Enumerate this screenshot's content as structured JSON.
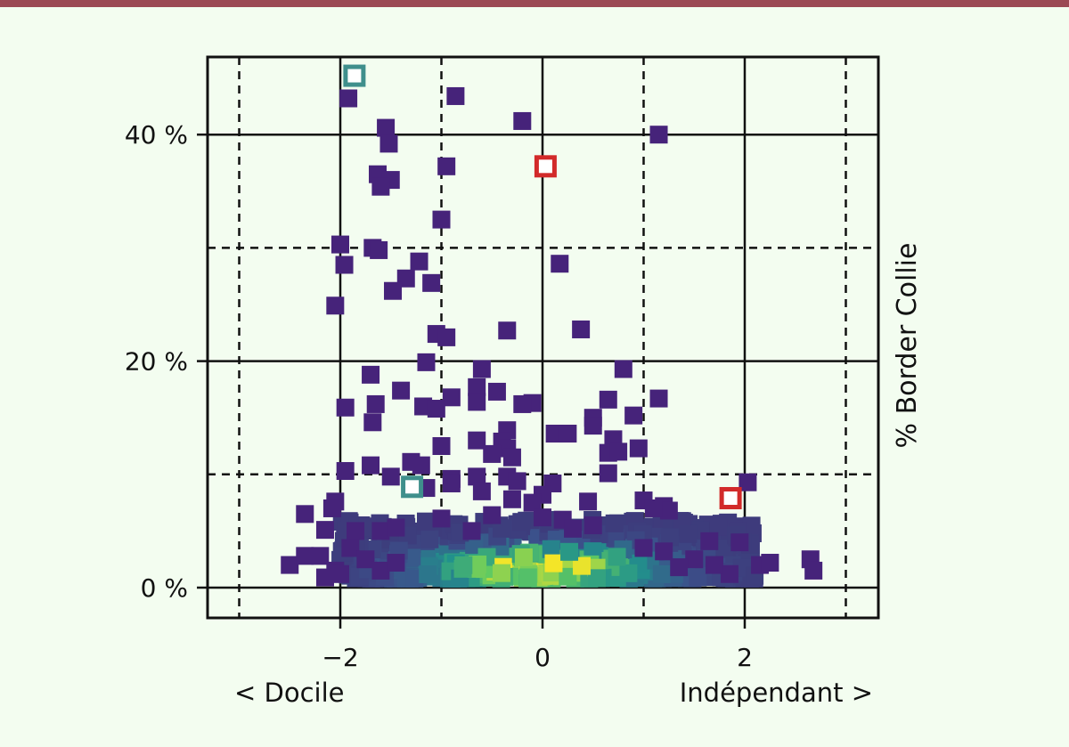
{
  "colors": {
    "background": "#f3fdf0",
    "top_bar": "#9b4954",
    "point_low": "#46237a",
    "highlight_red": "#d22a2a",
    "highlight_teal": "#3f8f8c"
  },
  "chart_data": {
    "type": "scatter",
    "xlim": [
      -3.3,
      3.3
    ],
    "ylim": [
      -3,
      46
    ],
    "x_ticks": [
      -2,
      0,
      2
    ],
    "x_tick_labels": [
      "−2",
      "0",
      "2"
    ],
    "y_ticks": [
      0,
      20,
      40
    ],
    "y_tick_labels": [
      "0 %",
      "20 %",
      "40 %"
    ],
    "x_left_label": "< Docile",
    "x_right_label": "Indépendant >",
    "ylabel": "% Border Collie",
    "grid": {
      "solid_x": [
        -2,
        0,
        2
      ],
      "dashed_x": [
        -3,
        -1,
        1,
        3
      ],
      "solid_y": [
        0,
        20,
        40
      ],
      "dashed_y": [
        10,
        30
      ]
    },
    "color_scale": "density (viridis: purple low → yellow high)",
    "points": [
      [
        -1.88,
        45.2
      ],
      [
        -1.92,
        43.2
      ],
      [
        -0.86,
        43.4
      ],
      [
        -0.2,
        41.2
      ],
      [
        1.15,
        40.0
      ],
      [
        -1.55,
        40.6
      ],
      [
        -1.52,
        39.2
      ],
      [
        -0.95,
        37.2
      ],
      [
        -1.63,
        36.5
      ],
      [
        -1.5,
        36.0
      ],
      [
        -1.6,
        35.4
      ],
      [
        -1.0,
        32.5
      ],
      [
        -2.0,
        30.3
      ],
      [
        -1.68,
        30.0
      ],
      [
        -1.62,
        29.8
      ],
      [
        -1.22,
        28.8
      ],
      [
        -1.96,
        28.5
      ],
      [
        0.17,
        28.6
      ],
      [
        -1.35,
        27.3
      ],
      [
        -1.1,
        26.9
      ],
      [
        -1.48,
        26.2
      ],
      [
        -2.05,
        24.9
      ],
      [
        -0.35,
        22.7
      ],
      [
        0.38,
        22.8
      ],
      [
        -1.05,
        22.4
      ],
      [
        -0.95,
        22.1
      ],
      [
        -1.15,
        19.9
      ],
      [
        -0.6,
        19.3
      ],
      [
        0.8,
        19.3
      ],
      [
        -1.7,
        18.8
      ],
      [
        -0.65,
        17.7
      ],
      [
        -1.4,
        17.4
      ],
      [
        -0.45,
        17.3
      ],
      [
        -0.9,
        16.8
      ],
      [
        -0.65,
        16.4
      ],
      [
        0.65,
        16.6
      ],
      [
        1.15,
        16.7
      ],
      [
        -0.1,
        16.3
      ],
      [
        -0.2,
        16.2
      ],
      [
        -1.18,
        16.0
      ],
      [
        -1.05,
        15.8
      ],
      [
        -1.65,
        16.2
      ],
      [
        -1.95,
        15.9
      ],
      [
        0.5,
        15.0
      ],
      [
        0.9,
        15.2
      ],
      [
        -1.68,
        14.6
      ],
      [
        -0.35,
        13.9
      ],
      [
        0.5,
        14.3
      ],
      [
        0.12,
        13.6
      ],
      [
        0.25,
        13.6
      ],
      [
        -0.4,
        12.9
      ],
      [
        -0.35,
        12.3
      ],
      [
        -0.65,
        13.0
      ],
      [
        0.7,
        13.1
      ],
      [
        0.65,
        11.9
      ],
      [
        0.95,
        12.3
      ],
      [
        -1.0,
        12.5
      ],
      [
        -0.5,
        11.8
      ],
      [
        -0.3,
        11.5
      ],
      [
        0.75,
        12.0
      ],
      [
        -1.3,
        11.1
      ],
      [
        -1.2,
        10.8
      ],
      [
        -1.7,
        10.8
      ],
      [
        -1.5,
        9.8
      ],
      [
        -1.95,
        10.3
      ],
      [
        -0.9,
        9.6
      ],
      [
        0.65,
        10.1
      ],
      [
        -0.65,
        9.8
      ],
      [
        -0.35,
        9.8
      ],
      [
        -0.25,
        9.4
      ],
      [
        2.03,
        9.3
      ],
      [
        -0.9,
        9.2
      ],
      [
        -1.15,
        8.8
      ],
      [
        0.1,
        9.2
      ],
      [
        -0.6,
        8.5
      ],
      [
        0.0,
        8.2
      ],
      [
        -0.3,
        7.8
      ],
      [
        -0.1,
        7.5
      ],
      [
        0.45,
        7.6
      ],
      [
        -2.05,
        7.6
      ],
      [
        -2.08,
        7.0
      ],
      [
        1.0,
        7.7
      ],
      [
        1.2,
        7.2
      ],
      [
        1.25,
        6.8
      ],
      [
        1.1,
        7.0
      ],
      [
        -2.35,
        6.5
      ],
      [
        -0.5,
        6.4
      ],
      [
        0.0,
        6.2
      ],
      [
        0.2,
        6.0
      ],
      [
        -1.0,
        6.1
      ],
      [
        -2.15,
        5.1
      ],
      [
        -1.85,
        5.0
      ],
      [
        -1.6,
        5.0
      ],
      [
        -1.45,
        5.3
      ],
      [
        -0.7,
        5.0
      ],
      [
        0.3,
        5.2
      ],
      [
        0.5,
        5.5
      ],
      [
        1.65,
        4.1
      ],
      [
        1.95,
        4.0
      ],
      [
        -2.5,
        2.0
      ],
      [
        -2.35,
        2.8
      ],
      [
        -2.2,
        2.8
      ],
      [
        -2.05,
        1.5
      ],
      [
        -2.15,
        0.9
      ],
      [
        -2.0,
        1.2
      ],
      [
        2.15,
        2.0
      ],
      [
        2.25,
        2.2
      ],
      [
        2.65,
        2.5
      ],
      [
        2.68,
        1.5
      ],
      [
        1.85,
        1.2
      ],
      [
        1.7,
        2.0
      ],
      [
        1.5,
        2.5
      ],
      [
        1.35,
        1.8
      ],
      [
        1.2,
        3.2
      ],
      [
        1.0,
        3.5
      ],
      [
        -1.9,
        3.5
      ],
      [
        -1.75,
        2.5
      ],
      [
        -1.6,
        1.5
      ],
      [
        -1.45,
        2.2
      ]
    ],
    "highlighted_points": [
      {
        "x": -1.86,
        "y": 45.2,
        "color": "teal"
      },
      {
        "x": -1.29,
        "y": 8.9,
        "color": "teal"
      },
      {
        "x": 0.03,
        "y": 37.2,
        "color": "red"
      },
      {
        "x": 1.86,
        "y": 7.9,
        "color": "red"
      }
    ]
  }
}
